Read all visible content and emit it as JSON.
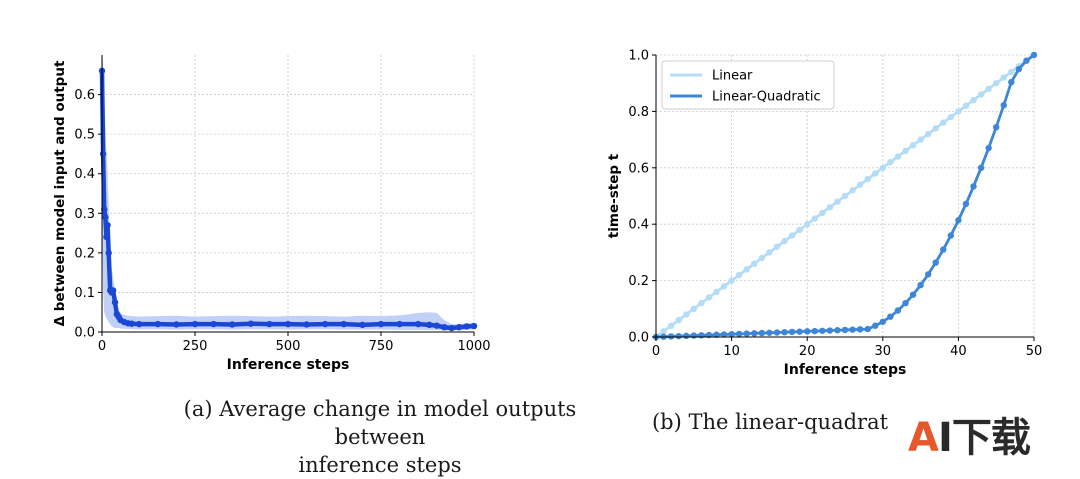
{
  "chart_data": [
    {
      "id": "a",
      "type": "line",
      "title": "",
      "xlabel": "Inference steps",
      "ylabel": "Δ between model input and output",
      "xlim": [
        0,
        1000
      ],
      "ylim": [
        0,
        0.7
      ],
      "xticks": [
        0,
        250,
        500,
        750,
        1000
      ],
      "yticks": [
        0.0,
        0.1,
        0.2,
        0.3,
        0.4,
        0.5,
        0.6
      ],
      "grid": true,
      "series": [
        {
          "color": "#1a47d6",
          "band_color": "#b9cbf5",
          "x": [
            0,
            3,
            6,
            9,
            12,
            15,
            18,
            22,
            26,
            30,
            35,
            40,
            45,
            50,
            60,
            70,
            80,
            100,
            150,
            200,
            250,
            300,
            350,
            400,
            450,
            500,
            550,
            600,
            650,
            700,
            750,
            800,
            850,
            880,
            900,
            920,
            940,
            960,
            980,
            1000
          ],
          "y": [
            0.66,
            0.45,
            0.31,
            0.29,
            0.24,
            0.27,
            0.2,
            0.105,
            0.1,
            0.105,
            0.075,
            0.045,
            0.038,
            0.03,
            0.025,
            0.022,
            0.021,
            0.02,
            0.02,
            0.019,
            0.02,
            0.02,
            0.019,
            0.021,
            0.02,
            0.02,
            0.019,
            0.02,
            0.02,
            0.018,
            0.02,
            0.02,
            0.02,
            0.018,
            0.016,
            0.012,
            0.01,
            0.012,
            0.014,
            0.015
          ],
          "upper": [
            0.7,
            0.68,
            0.6,
            0.52,
            0.45,
            0.4,
            0.32,
            0.2,
            0.16,
            0.14,
            0.1,
            0.065,
            0.055,
            0.048,
            0.043,
            0.041,
            0.04,
            0.039,
            0.04,
            0.041,
            0.039,
            0.04,
            0.041,
            0.04,
            0.039,
            0.04,
            0.041,
            0.04,
            0.039,
            0.041,
            0.04,
            0.042,
            0.048,
            0.05,
            0.048,
            0.03,
            0.02,
            0.02,
            0.022,
            0.024
          ],
          "lower": [
            0.3,
            0.1,
            0.05,
            0.04,
            0.035,
            0.03,
            0.025,
            0.02,
            0.015,
            0.012,
            0.01,
            0.01,
            0.01,
            0.009,
            0.008,
            0.008,
            0.007,
            0.007,
            0.007,
            0.006,
            0.007,
            0.007,
            0.006,
            0.007,
            0.007,
            0.006,
            0.007,
            0.007,
            0.006,
            0.006,
            0.006,
            0.005,
            0.005,
            0.005,
            0.005,
            0.004,
            0.004,
            0.005,
            0.006,
            0.007
          ]
        }
      ]
    },
    {
      "id": "b",
      "type": "line",
      "title": "",
      "xlabel": "Inference steps",
      "ylabel": "time-step t",
      "xlim": [
        0,
        50
      ],
      "ylim": [
        0,
        1.0
      ],
      "xticks": [
        0,
        10,
        20,
        30,
        40,
        50
      ],
      "yticks": [
        0.0,
        0.2,
        0.4,
        0.6,
        0.8,
        1.0
      ],
      "grid": true,
      "legend": "top-left",
      "series": [
        {
          "name": "Linear",
          "color": "#b5dcf7",
          "x": [
            0,
            1,
            2,
            3,
            4,
            5,
            6,
            7,
            8,
            9,
            10,
            11,
            12,
            13,
            14,
            15,
            16,
            17,
            18,
            19,
            20,
            21,
            22,
            23,
            24,
            25,
            26,
            27,
            28,
            29,
            30,
            31,
            32,
            33,
            34,
            35,
            36,
            37,
            38,
            39,
            40,
            41,
            42,
            43,
            44,
            45,
            46,
            47,
            48,
            49,
            50
          ],
          "y": [
            0.0,
            0.02,
            0.04,
            0.06,
            0.08,
            0.1,
            0.12,
            0.14,
            0.16,
            0.18,
            0.2,
            0.22,
            0.24,
            0.26,
            0.28,
            0.3,
            0.32,
            0.34,
            0.36,
            0.38,
            0.4,
            0.42,
            0.44,
            0.46,
            0.48,
            0.5,
            0.52,
            0.54,
            0.56,
            0.58,
            0.6,
            0.62,
            0.64,
            0.66,
            0.68,
            0.7,
            0.72,
            0.74,
            0.76,
            0.78,
            0.8,
            0.82,
            0.84,
            0.86,
            0.88,
            0.9,
            0.92,
            0.94,
            0.96,
            0.98,
            1.0
          ]
        },
        {
          "name": "Linear-Quadratic",
          "color": "#3d86d8",
          "x": [
            0,
            1,
            2,
            3,
            4,
            5,
            6,
            7,
            8,
            9,
            10,
            11,
            12,
            13,
            14,
            15,
            16,
            17,
            18,
            19,
            20,
            21,
            22,
            23,
            24,
            25,
            26,
            27,
            28,
            29,
            30,
            31,
            32,
            33,
            34,
            35,
            36,
            37,
            38,
            39,
            40,
            41,
            42,
            43,
            44,
            45,
            46,
            47,
            48,
            49,
            50
          ],
          "y": [
            0.0,
            0.001,
            0.002,
            0.003,
            0.004,
            0.005,
            0.006,
            0.007,
            0.008,
            0.009,
            0.01,
            0.011,
            0.012,
            0.013,
            0.014,
            0.015,
            0.016,
            0.017,
            0.018,
            0.019,
            0.02,
            0.021,
            0.022,
            0.023,
            0.024,
            0.025,
            0.026,
            0.027,
            0.028,
            0.04,
            0.054,
            0.072,
            0.094,
            0.12,
            0.15,
            0.184,
            0.222,
            0.264,
            0.31,
            0.36,
            0.414,
            0.472,
            0.534,
            0.6,
            0.67,
            0.744,
            0.822,
            0.904,
            0.95,
            0.98,
            1.0
          ]
        }
      ]
    }
  ],
  "captions": {
    "a_line1": "(a) Average change in model outputs between",
    "a_line2": "inference steps",
    "b": "(b) The linear-quadrat"
  },
  "watermark": {
    "text": "AI下载"
  }
}
